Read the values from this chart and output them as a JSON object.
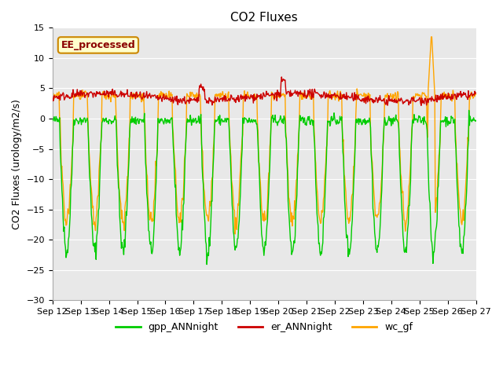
{
  "title": "CO2 Fluxes",
  "ylabel": "CO2 Fluxes (urology/m2/s)",
  "xlabel": "",
  "ylim": [
    -30,
    15
  ],
  "yticks": [
    -30,
    -25,
    -20,
    -15,
    -10,
    -5,
    0,
    5,
    10,
    15
  ],
  "xtick_labels": [
    "Sep 12",
    "Sep 13",
    "Sep 14",
    "Sep 15",
    "Sep 16",
    "Sep 17",
    "Sep 18",
    "Sep 19",
    "Sep 20",
    "Sep 21",
    "Sep 22",
    "Sep 23",
    "Sep 24",
    "Sep 25",
    "Sep 26",
    "Sep 27"
  ],
  "gpp_color": "#00cc00",
  "er_color": "#cc0000",
  "wc_color": "#FFA500",
  "figure_bg": "#ffffff",
  "plot_bg": "#e8e8e8",
  "legend_label_text": "EE_processed",
  "legend_bg": "#ffffcc",
  "legend_edge": "#cc8800",
  "title_fontsize": 11,
  "axis_fontsize": 9,
  "tick_fontsize": 8,
  "legend_fontsize": 9,
  "line_width": 1.0,
  "n_days": 15,
  "n_per_day": 48,
  "seed": 42
}
